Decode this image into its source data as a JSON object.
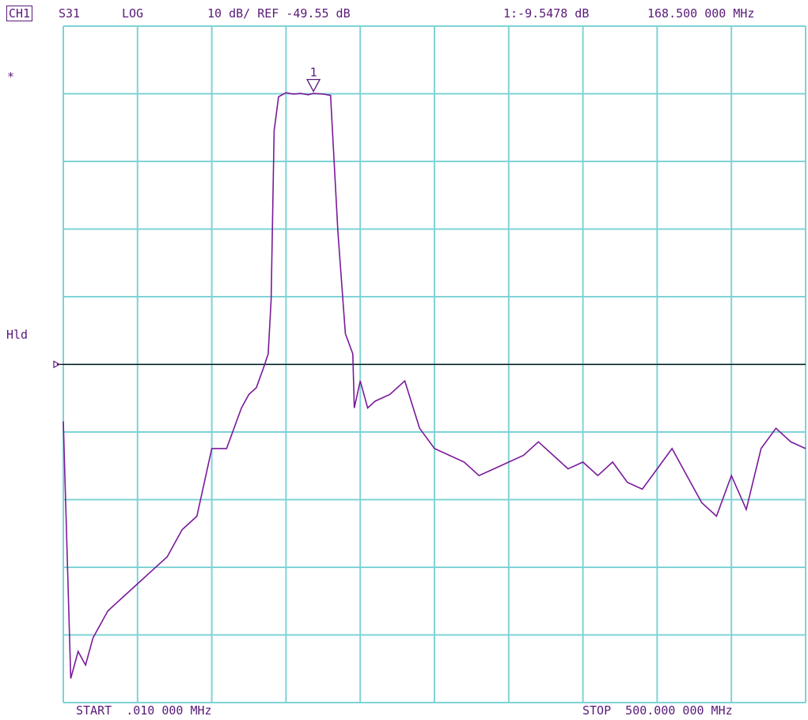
{
  "header": {
    "channel": "CH1",
    "parameter": "S31",
    "format": "LOG",
    "scale_ref": "10 dB/ REF -49.55 dB",
    "marker_readout": "1:-9.5478 dB",
    "marker_freq": "168.500 000 MHz"
  },
  "side": {
    "star": "*",
    "hold": "Hld"
  },
  "footer": {
    "start": "START  .010 000 MHz",
    "stop": "STOP  500.000 000 MHz"
  },
  "colors": {
    "grid": "#7fd3d6",
    "trace": "#7a1a9a",
    "text": "#5a1a7a",
    "ref_line": "#000000"
  },
  "chart_data": {
    "type": "line",
    "xlim": [
      0.01,
      500
    ],
    "ylim": [
      -99.55,
      0.45
    ],
    "grid": true,
    "ref_level": -49.55,
    "marker": {
      "label": "1",
      "x": 168.5,
      "y": -9.5478
    },
    "series": [
      {
        "x": [
          0.01,
          5,
          10,
          15,
          20,
          30,
          40,
          50,
          60,
          70,
          80,
          90,
          100,
          110,
          120,
          125,
          130,
          135,
          138,
          140,
          142,
          145,
          150,
          155,
          160,
          165,
          168.5,
          175,
          180,
          185,
          190,
          195,
          196,
          200,
          205,
          210,
          220,
          230,
          240,
          250,
          260,
          270,
          280,
          290,
          300,
          310,
          320,
          330,
          340,
          350,
          360,
          370,
          380,
          390,
          400,
          410,
          420,
          430,
          440,
          450,
          460,
          470,
          480,
          490,
          500
        ],
        "y": [
          -58,
          -96,
          -92,
          -94,
          -90,
          -86,
          -84,
          -82,
          -80,
          -78,
          -74,
          -72,
          -62,
          -62,
          -56,
          -54,
          -53,
          -50,
          -48,
          -40,
          -15,
          -10,
          -9.4,
          -9.6,
          -9.5,
          -9.7,
          -9.5,
          -9.6,
          -9.8,
          -30,
          -45,
          -48,
          -56,
          -52,
          -56,
          -55,
          -54,
          -52,
          -59,
          -62,
          -63,
          -64,
          -66,
          -65,
          -64,
          -63,
          -61,
          -63,
          -65,
          -64,
          -66,
          -64,
          -67,
          -68,
          -65,
          -62,
          -66,
          -70,
          -72,
          -66,
          -71,
          -62,
          -59,
          -61,
          -62
        ]
      }
    ]
  }
}
